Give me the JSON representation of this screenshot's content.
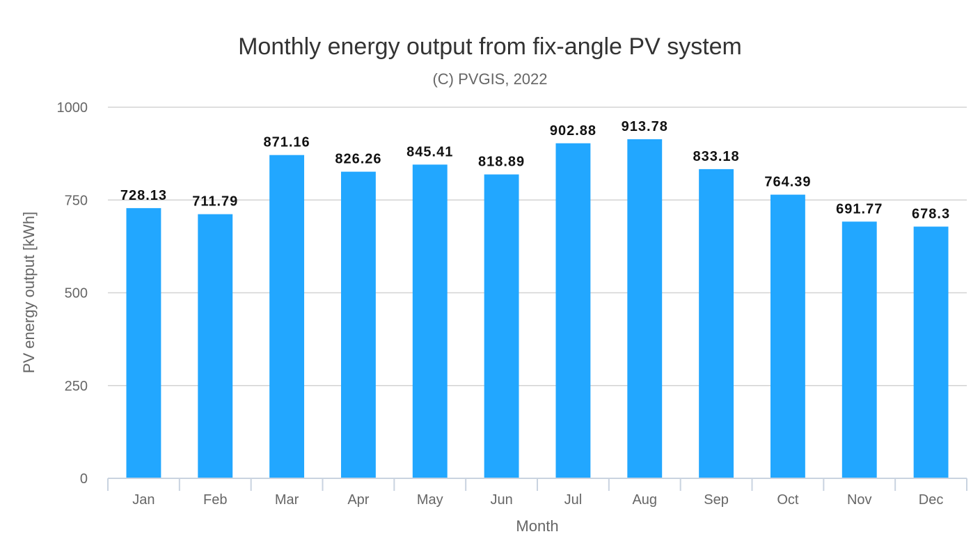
{
  "chart_data": {
    "type": "bar",
    "title": "Monthly energy output from fix-angle PV system",
    "subtitle": "(C) PVGIS, 2022",
    "xlabel": "Month",
    "ylabel": "PV energy output [kWh]",
    "categories": [
      "Jan",
      "Feb",
      "Mar",
      "Apr",
      "May",
      "Jun",
      "Jul",
      "Aug",
      "Sep",
      "Oct",
      "Nov",
      "Dec"
    ],
    "values": [
      728.13,
      711.79,
      871.16,
      826.26,
      845.41,
      818.89,
      902.88,
      913.78,
      833.18,
      764.39,
      691.77,
      678.3
    ],
    "data_labels": [
      "728.13",
      "711.79",
      "871.16",
      "826.26",
      "845.41",
      "818.89",
      "902.88",
      "913.78",
      "833.18",
      "764.39",
      "691.77",
      "678.3"
    ],
    "ylim": [
      0,
      1000
    ],
    "yticks": [
      0,
      250,
      500,
      750,
      1000
    ],
    "grid": true,
    "legend": "none",
    "bar_color": "#22a7ff"
  }
}
